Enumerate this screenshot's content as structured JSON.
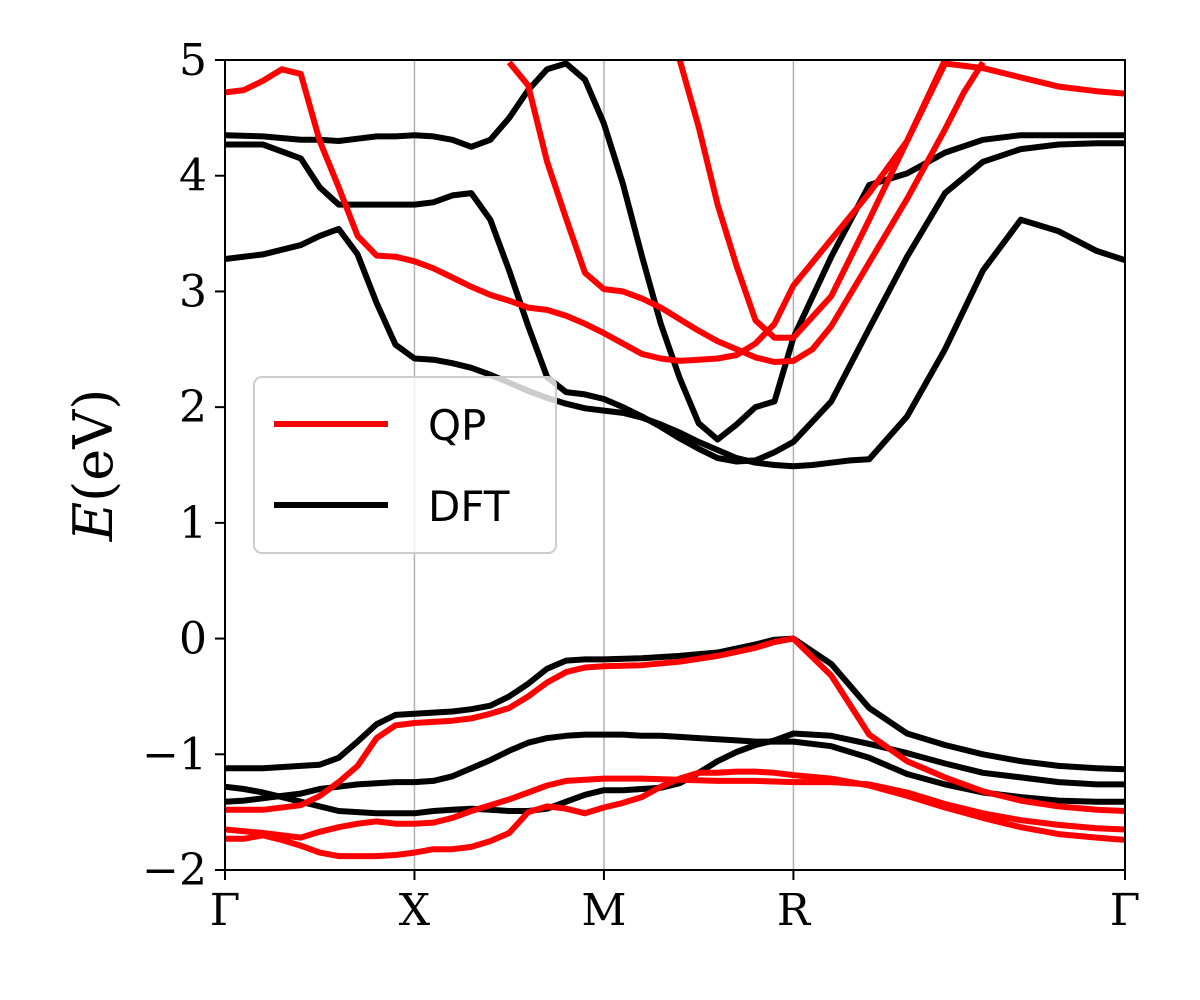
{
  "chart_data": {
    "type": "line",
    "title": "",
    "ylabel_var": "E",
    "ylabel_unit": "(eV)",
    "ylim": [
      -2,
      5
    ],
    "y_ticks": [
      "−2",
      "−1",
      "0",
      "1",
      "2",
      "3",
      "4",
      "5"
    ],
    "y_tick_values": [
      -2,
      -1,
      0,
      1,
      2,
      3,
      4,
      5
    ],
    "xlim": [
      0,
      4.75
    ],
    "x_ticks": [
      {
        "label": "Γ",
        "value": 0
      },
      {
        "label": "X",
        "value": 1
      },
      {
        "label": "M",
        "value": 2
      },
      {
        "label": "R",
        "value": 3
      },
      {
        "label": "Γ",
        "value": 4.75
      }
    ],
    "vertical_gridlines_at": [
      1,
      2,
      3
    ],
    "legend": {
      "position": "center-left",
      "entries": [
        {
          "name": "QP",
          "color": "#ff0000"
        },
        {
          "name": "DFT",
          "color": "#000000"
        }
      ]
    },
    "series": [
      {
        "name": "DFT",
        "color": "#000000",
        "x": [
          0,
          0.1,
          0.2,
          0.3,
          0.4,
          0.5,
          0.6,
          0.7,
          0.8,
          0.9,
          1.0,
          1.1,
          1.2,
          1.3,
          1.4,
          1.5,
          1.6,
          1.7,
          1.8,
          1.9,
          2.0,
          2.1,
          2.2,
          2.3,
          2.4,
          2.5,
          2.6,
          2.7,
          2.8,
          2.9,
          3.0,
          3.2,
          3.4,
          3.6,
          3.8,
          4.0,
          4.2,
          4.4,
          4.6,
          4.75
        ],
        "y": [
          -1.41,
          -1.4,
          -1.38,
          -1.36,
          -1.34,
          -1.3,
          -1.28,
          -1.26,
          -1.25,
          -1.24,
          -1.24,
          -1.23,
          -1.19,
          -1.12,
          -1.05,
          -0.97,
          -0.9,
          -0.86,
          -0.84,
          -0.83,
          -0.83,
          -0.83,
          -0.84,
          -0.84,
          -0.85,
          -0.86,
          -0.87,
          -0.88,
          -0.89,
          -0.89,
          -0.89,
          -0.93,
          -1.03,
          -1.17,
          -1.26,
          -1.33,
          -1.37,
          -1.4,
          -1.41,
          -1.41
        ]
      },
      {
        "name": "DFT",
        "color": "#000000",
        "x": [
          0,
          0.1,
          0.2,
          0.3,
          0.4,
          0.5,
          0.6,
          0.7,
          0.8,
          0.9,
          1.0,
          1.1,
          1.2,
          1.3,
          1.4,
          1.5,
          1.6,
          1.7,
          1.8,
          1.9,
          2.0,
          2.1,
          2.2,
          2.3,
          2.4,
          2.5,
          2.6,
          2.7,
          2.8,
          2.9,
          3.0,
          3.2,
          3.4,
          3.6,
          3.8,
          4.0,
          4.2,
          4.4,
          4.6,
          4.75
        ],
        "y": [
          -1.28,
          -1.3,
          -1.33,
          -1.37,
          -1.41,
          -1.45,
          -1.49,
          -1.5,
          -1.51,
          -1.51,
          -1.51,
          -1.49,
          -1.48,
          -1.47,
          -1.48,
          -1.49,
          -1.49,
          -1.47,
          -1.41,
          -1.35,
          -1.31,
          -1.31,
          -1.3,
          -1.29,
          -1.25,
          -1.16,
          -1.06,
          -0.98,
          -0.92,
          -0.88,
          -0.82,
          -0.84,
          -0.91,
          -0.99,
          -1.08,
          -1.16,
          -1.2,
          -1.24,
          -1.26,
          -1.26
        ]
      },
      {
        "name": "DFT",
        "color": "#000000",
        "x": [
          0,
          0.2,
          0.4,
          0.5,
          0.6,
          0.7,
          0.8,
          0.9,
          1.0,
          1.1,
          1.2,
          1.3,
          1.4,
          1.5,
          1.6,
          1.7,
          1.8,
          1.9,
          2.0,
          2.2,
          2.4,
          2.6,
          2.8,
          2.9,
          3.0,
          3.2,
          3.4,
          3.6,
          3.8,
          4.0,
          4.2,
          4.4,
          4.6,
          4.75
        ],
        "y": [
          -1.12,
          -1.12,
          -1.1,
          -1.09,
          -1.03,
          -0.89,
          -0.74,
          -0.66,
          -0.65,
          -0.64,
          -0.63,
          -0.61,
          -0.58,
          -0.5,
          -0.39,
          -0.26,
          -0.19,
          -0.18,
          -0.18,
          -0.17,
          -0.15,
          -0.12,
          -0.05,
          -0.01,
          0.0,
          -0.22,
          -0.6,
          -0.82,
          -0.92,
          -1.0,
          -1.06,
          -1.1,
          -1.12,
          -1.13
        ]
      },
      {
        "name": "DFT",
        "color": "#000000",
        "x": [
          0,
          0.2,
          0.4,
          0.5,
          0.6,
          0.7,
          0.8,
          0.9,
          1.0,
          1.1,
          1.2,
          1.3,
          1.4,
          1.5,
          1.6,
          1.7,
          1.8,
          1.9,
          2.0,
          2.1,
          2.2,
          2.3,
          2.4,
          2.5,
          2.6,
          2.7,
          2.8,
          2.9,
          3.0,
          3.1,
          3.2,
          3.3,
          3.4,
          3.6,
          3.8,
          4.0,
          4.2,
          4.4,
          4.6,
          4.75
        ],
        "y": [
          3.28,
          3.32,
          3.4,
          3.48,
          3.54,
          3.32,
          2.9,
          2.54,
          2.42,
          2.41,
          2.38,
          2.34,
          2.28,
          2.21,
          2.14,
          2.08,
          2.03,
          1.99,
          1.97,
          1.95,
          1.91,
          1.85,
          1.78,
          1.7,
          1.63,
          1.56,
          1.52,
          1.5,
          1.49,
          1.5,
          1.52,
          1.54,
          1.55,
          1.92,
          2.5,
          3.18,
          3.62,
          3.52,
          3.35,
          3.27
        ]
      },
      {
        "name": "DFT",
        "color": "#000000",
        "x": [
          0,
          0.2,
          0.4,
          0.5,
          0.6,
          0.7,
          0.8,
          0.9,
          1.0,
          1.1,
          1.2,
          1.3,
          1.4,
          1.5,
          1.6,
          1.7,
          1.8,
          1.9,
          2.0,
          2.1,
          2.2,
          2.3,
          2.4,
          2.5,
          2.6,
          2.7,
          2.8,
          2.9,
          3.0,
          3.2,
          3.4,
          3.6,
          3.8,
          4.0,
          4.2,
          4.4,
          4.6,
          4.75
        ],
        "y": [
          4.27,
          4.27,
          4.15,
          3.9,
          3.75,
          3.75,
          3.75,
          3.75,
          3.75,
          3.77,
          3.83,
          3.85,
          3.62,
          3.18,
          2.7,
          2.26,
          2.13,
          2.11,
          2.07,
          2.0,
          1.92,
          1.83,
          1.73,
          1.64,
          1.56,
          1.53,
          1.54,
          1.61,
          1.7,
          2.05,
          2.68,
          3.3,
          3.85,
          4.12,
          4.23,
          4.27,
          4.28,
          4.28
        ]
      },
      {
        "name": "DFT",
        "color": "#000000",
        "x": [
          0,
          0.2,
          0.4,
          0.5,
          0.6,
          0.7,
          0.8,
          0.9,
          1.0,
          1.1,
          1.2,
          1.3,
          1.4,
          1.5,
          1.6,
          1.7,
          1.8,
          1.9,
          2.0,
          2.1,
          2.2,
          2.3,
          2.4,
          2.5,
          2.6,
          2.7,
          2.8,
          2.9,
          3.0,
          3.2,
          3.4,
          3.6,
          3.8,
          4.0,
          4.2,
          4.4,
          4.6,
          4.75
        ],
        "y": [
          4.35,
          4.34,
          4.31,
          4.31,
          4.3,
          4.32,
          4.34,
          4.34,
          4.35,
          4.34,
          4.31,
          4.25,
          4.31,
          4.5,
          4.74,
          4.92,
          4.97,
          4.83,
          4.45,
          3.93,
          3.31,
          2.72,
          2.25,
          1.86,
          1.72,
          1.85,
          2.0,
          2.05,
          2.6,
          3.3,
          3.92,
          4.02,
          4.2,
          4.31,
          4.35,
          4.35,
          4.35,
          4.35
        ]
      },
      {
        "name": "QP",
        "color": "#ff0000",
        "x": [
          0,
          0.1,
          0.2,
          0.3,
          0.4,
          0.5,
          0.6,
          0.7,
          0.8,
          0.9,
          1.0,
          1.1,
          1.2,
          1.3,
          1.4,
          1.5,
          1.6,
          1.7,
          1.8,
          1.9,
          2.0,
          2.1,
          2.2,
          2.3,
          2.4,
          2.5,
          2.6,
          2.7,
          2.8,
          2.9,
          3.0,
          3.2,
          3.4,
          3.6,
          3.8,
          4.0,
          4.2,
          4.4,
          4.6,
          4.75
        ],
        "y": [
          -1.73,
          -1.73,
          -1.7,
          -1.74,
          -1.79,
          -1.85,
          -1.88,
          -1.88,
          -1.88,
          -1.87,
          -1.85,
          -1.82,
          -1.82,
          -1.8,
          -1.75,
          -1.68,
          -1.5,
          -1.45,
          -1.47,
          -1.51,
          -1.46,
          -1.42,
          -1.37,
          -1.28,
          -1.21,
          -1.16,
          -1.16,
          -1.15,
          -1.15,
          -1.16,
          -1.18,
          -1.21,
          -1.27,
          -1.36,
          -1.46,
          -1.55,
          -1.63,
          -1.69,
          -1.72,
          -1.74
        ]
      },
      {
        "name": "QP",
        "color": "#ff0000",
        "x": [
          0,
          0.2,
          0.4,
          0.5,
          0.6,
          0.7,
          0.8,
          0.9,
          1.0,
          1.1,
          1.2,
          1.3,
          1.4,
          1.5,
          1.6,
          1.7,
          1.8,
          1.9,
          2.0,
          2.2,
          2.4,
          2.6,
          2.8,
          3.0,
          3.2,
          3.4,
          3.6,
          3.8,
          4.0,
          4.2,
          4.4,
          4.6,
          4.75
        ],
        "y": [
          -1.65,
          -1.68,
          -1.72,
          -1.67,
          -1.63,
          -1.6,
          -1.58,
          -1.6,
          -1.6,
          -1.59,
          -1.55,
          -1.49,
          -1.44,
          -1.39,
          -1.33,
          -1.27,
          -1.23,
          -1.22,
          -1.21,
          -1.21,
          -1.22,
          -1.23,
          -1.23,
          -1.24,
          -1.24,
          -1.26,
          -1.33,
          -1.43,
          -1.51,
          -1.57,
          -1.61,
          -1.64,
          -1.65
        ]
      },
      {
        "name": "QP",
        "color": "#ff0000",
        "x": [
          0,
          0.2,
          0.4,
          0.5,
          0.6,
          0.7,
          0.8,
          0.9,
          1.0,
          1.1,
          1.2,
          1.3,
          1.4,
          1.5,
          1.6,
          1.7,
          1.8,
          1.9,
          2.0,
          2.2,
          2.4,
          2.6,
          2.8,
          2.9,
          3.0,
          3.2,
          3.4,
          3.6,
          3.8,
          4.0,
          4.2,
          4.4,
          4.6,
          4.75
        ],
        "y": [
          -1.48,
          -1.48,
          -1.44,
          -1.36,
          -1.24,
          -1.1,
          -0.86,
          -0.75,
          -0.73,
          -0.72,
          -0.71,
          -0.69,
          -0.65,
          -0.6,
          -0.5,
          -0.38,
          -0.29,
          -0.25,
          -0.24,
          -0.23,
          -0.2,
          -0.15,
          -0.08,
          -0.03,
          0.0,
          -0.32,
          -0.83,
          -1.06,
          -1.2,
          -1.32,
          -1.4,
          -1.45,
          -1.48,
          -1.49
        ]
      },
      {
        "name": "QP",
        "color": "#ff0000",
        "x": [
          0,
          0.1,
          0.2,
          0.3,
          0.4,
          0.5,
          0.6,
          0.7,
          0.8,
          0.9,
          1.0,
          1.1,
          1.2,
          1.3,
          1.4,
          1.5,
          1.6,
          1.7,
          1.8,
          1.9,
          2.0,
          2.1,
          2.2,
          2.3,
          2.4,
          2.5,
          2.6,
          2.7,
          2.8,
          2.9,
          3.0,
          3.2,
          3.4,
          3.6,
          3.8,
          4.0,
          4.2,
          4.4,
          4.6,
          4.75
        ],
        "y": [
          4.72,
          4.74,
          4.82,
          4.92,
          4.88,
          4.3,
          3.9,
          3.48,
          3.31,
          3.3,
          3.26,
          3.2,
          3.12,
          3.04,
          2.97,
          2.92,
          2.86,
          2.84,
          2.79,
          2.72,
          2.64,
          2.55,
          2.46,
          2.42,
          2.4,
          2.41,
          2.42,
          2.45,
          2.55,
          2.72,
          3.05,
          3.45,
          3.85,
          4.3,
          4.97,
          4.93,
          4.85,
          4.77,
          4.73,
          4.71
        ]
      },
      {
        "name": "QP",
        "color": "#ff0000",
        "x": [
          1.5,
          1.6,
          1.7,
          1.8,
          1.9,
          2.0,
          2.1,
          2.2,
          2.3,
          2.4,
          2.5,
          2.6,
          2.7,
          2.8,
          2.9,
          3.0,
          3.1,
          3.2,
          3.4,
          3.6,
          3.8,
          3.9,
          4.0
        ],
        "y": [
          4.98,
          4.78,
          4.12,
          3.63,
          3.16,
          3.02,
          3.0,
          2.94,
          2.86,
          2.76,
          2.66,
          2.57,
          2.5,
          2.43,
          2.39,
          2.4,
          2.5,
          2.7,
          3.25,
          3.8,
          4.4,
          4.72,
          4.98
        ]
      },
      {
        "name": "QP",
        "color": "#ff0000",
        "x": [
          2.4,
          2.5,
          2.6,
          2.7,
          2.8,
          2.9,
          3.0,
          3.1,
          3.2,
          3.4,
          3.6,
          3.8,
          3.86
        ],
        "y": [
          5.0,
          4.42,
          3.75,
          3.22,
          2.75,
          2.6,
          2.6,
          2.78,
          2.96,
          3.62,
          4.3,
          5.0,
          5.2
        ]
      }
    ]
  }
}
